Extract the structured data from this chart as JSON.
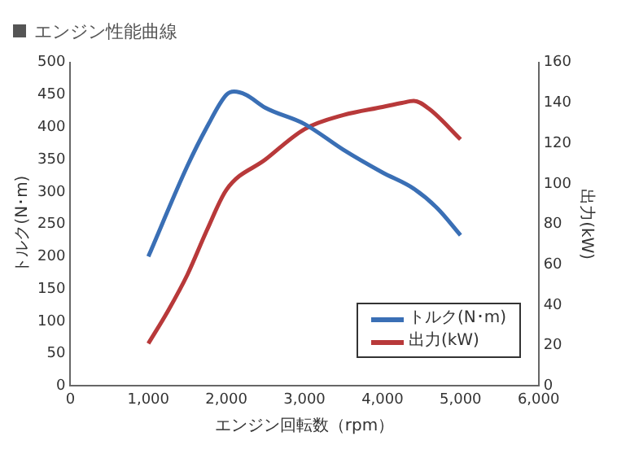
{
  "chart_data": {
    "type": "line",
    "title": "エンジン性能曲線",
    "xlabel": "エンジン回転数（rpm）",
    "ylabel": "トルク(N･m)",
    "y2label": "出力(kW)",
    "xlim": [
      0,
      6000
    ],
    "xticks": [
      {
        "value": 0,
        "label": "0"
      },
      {
        "value": 1000,
        "label": "1,000"
      },
      {
        "value": 2000,
        "label": "2,000"
      },
      {
        "value": 3000,
        "label": "3,000"
      },
      {
        "value": 4000,
        "label": "4,000"
      },
      {
        "value": 5000,
        "label": "5,000"
      },
      {
        "value": 6000,
        "label": "6,000"
      }
    ],
    "ylim": [
      0,
      500
    ],
    "yticks": [
      0,
      50,
      100,
      150,
      200,
      250,
      300,
      350,
      400,
      450,
      500
    ],
    "y2lim": [
      0,
      160
    ],
    "y2ticks": [
      0,
      20,
      40,
      60,
      80,
      100,
      120,
      140,
      160
    ],
    "grid": false,
    "legend": "bottom right",
    "marker": "none",
    "line_style": "solid",
    "series": [
      {
        "name": "トルク(N･m)",
        "color": "#3a6fb5",
        "x": [
          1000,
          1500,
          1750,
          2000,
          2100,
          2250,
          2500,
          3000,
          3500,
          4000,
          4400,
          4700,
          5000
        ],
        "values": [
          200,
          340,
          400,
          450,
          455,
          450,
          430,
          405,
          365,
          330,
          305,
          275,
          233
        ]
      },
      {
        "name": "出力(kW)",
        "color": "#b8393a",
        "axis": "y2",
        "x": [
          1000,
          1250,
          1500,
          1750,
          2000,
          2500,
          3000,
          3500,
          4000,
          4250,
          4400,
          4600,
          5000
        ],
        "values": [
          21,
          37,
          55,
          77,
          97,
          112,
          127,
          134,
          138,
          140,
          141,
          137,
          122
        ]
      }
    ]
  }
}
